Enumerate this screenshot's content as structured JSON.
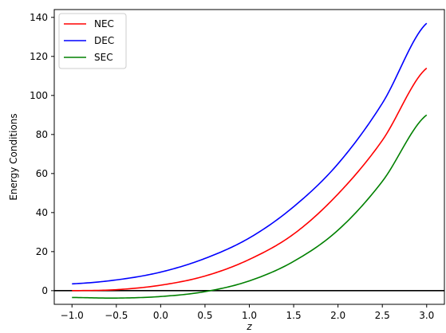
{
  "chart_data": {
    "type": "line",
    "xlabel": "z",
    "ylabel": "Energy Conditions",
    "xlim": [
      -1.2,
      3.2
    ],
    "ylim": [
      -7,
      144
    ],
    "xticks": [
      "−1.0",
      "−0.5",
      "0.0",
      "0.5",
      "1.0",
      "1.5",
      "2.0",
      "2.5",
      "3.0"
    ],
    "yticks": [
      "0",
      "20",
      "40",
      "60",
      "80",
      "100",
      "120",
      "140"
    ],
    "x": [
      -1.0,
      -0.5,
      0.0,
      0.5,
      1.0,
      1.5,
      2.0,
      2.5,
      3.0
    ],
    "series": [
      {
        "name": "NEC",
        "color": "#ff0000",
        "values": [
          0.0,
          0.5,
          2.8,
          7.5,
          16.0,
          29.0,
          49.5,
          77.0,
          114.0
        ]
      },
      {
        "name": "DEC",
        "color": "#0000ff",
        "values": [
          3.5,
          5.5,
          9.5,
          16.5,
          27.0,
          43.0,
          65.0,
          96.0,
          137.0
        ]
      },
      {
        "name": "SEC",
        "color": "#008000",
        "values": [
          -3.5,
          -3.8,
          -3.0,
          -0.5,
          5.0,
          15.0,
          31.0,
          56.0,
          90.0
        ]
      }
    ],
    "hline": {
      "y": 0,
      "color": "#000000"
    },
    "legend": "top-left",
    "grid": false
  }
}
